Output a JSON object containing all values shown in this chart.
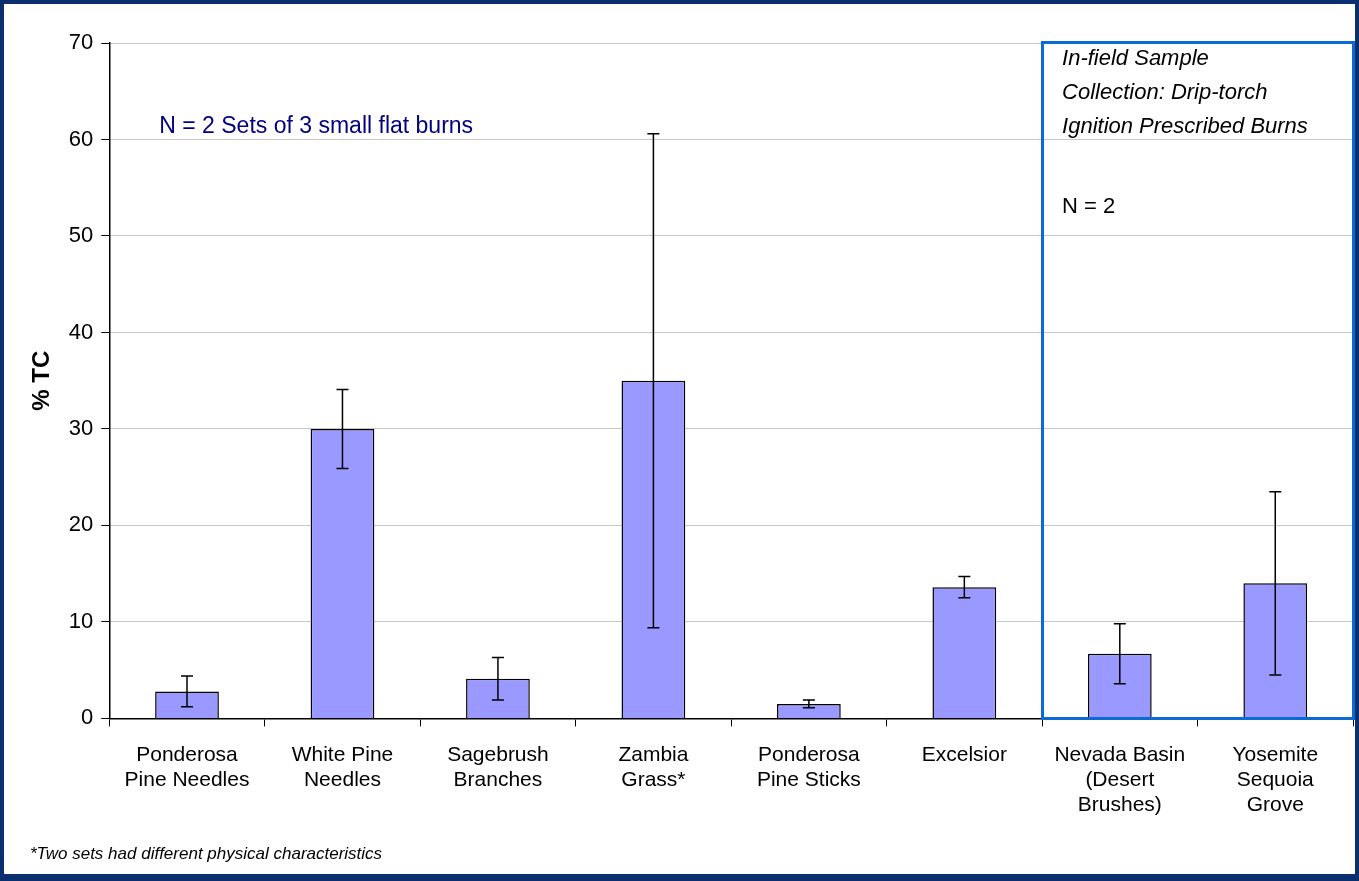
{
  "chart_data": {
    "type": "bar",
    "ylabel": "% TC",
    "categories": [
      "Ponderosa Pine Needles",
      "White Pine Needles",
      "Sagebrush Branches",
      "Zambia Grass*",
      "Ponderosa Pine Sticks",
      "Excelsior",
      "Nevada Basin (Desert Brushes)",
      "Yosemite Sequoia Grove"
    ],
    "values": [
      2.8,
      30.0,
      4.1,
      35.0,
      1.5,
      13.6,
      6.7,
      14.0
    ],
    "errors": [
      1.6,
      4.1,
      2.2,
      25.6,
      0.4,
      1.1,
      3.1,
      9.5
    ],
    "color": "#9999ff",
    "ylim": [
      0,
      70
    ],
    "yticks": [
      0,
      10,
      20,
      30,
      40,
      50,
      60,
      70
    ],
    "grid": "y",
    "legend": false,
    "annotations": [
      "N = 2 Sets of 3 small flat burns",
      "In-field Sample",
      "Collection: Drip-torch",
      "Ignition Prescribed Burns",
      "N = 2",
      "*Two sets had different physical characteristics"
    ]
  }
}
